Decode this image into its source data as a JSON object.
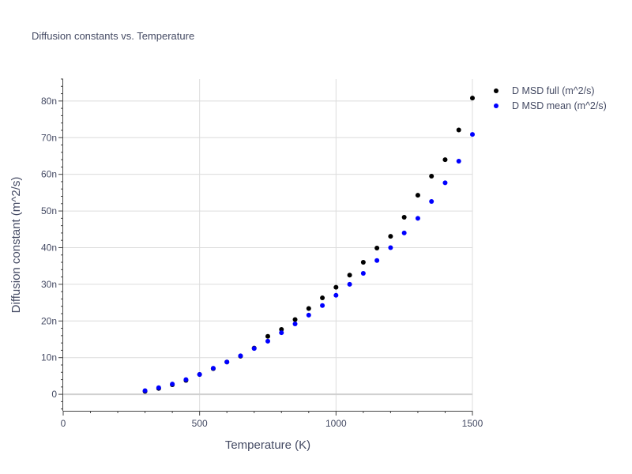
{
  "chart_data": {
    "type": "scatter",
    "title": "Diffusion constants vs. Temperature",
    "xlabel": "Temperature (K)",
    "ylabel": "Diffusion constant (m^2/s)",
    "xlim": [
      0,
      1500
    ],
    "ylim": [
      -4.5,
      86
    ],
    "x_ticks": [
      0,
      500,
      1000,
      1500
    ],
    "x_tick_labels": [
      "0",
      "500",
      "1000",
      "1500"
    ],
    "y_ticks": [
      0,
      10,
      20,
      30,
      40,
      50,
      60,
      70,
      80
    ],
    "y_tick_labels": [
      "0",
      "10n",
      "20n",
      "30n",
      "40n",
      "50n",
      "60n",
      "70n",
      "80n"
    ],
    "legend_position": "top-right",
    "x": [
      300,
      350,
      400,
      450,
      500,
      550,
      600,
      650,
      700,
      750,
      800,
      850,
      900,
      950,
      1000,
      1050,
      1100,
      1150,
      1200,
      1250,
      1300,
      1350,
      1400,
      1450,
      1500
    ],
    "series": [
      {
        "name": "D MSD full (m^2/s)",
        "color": "#000000",
        "values": [
          0.8,
          1.6,
          2.6,
          3.8,
          5.4,
          7.0,
          8.8,
          10.4,
          12.6,
          15.8,
          17.7,
          20.4,
          23.4,
          26.3,
          29.2,
          32.5,
          36.0,
          39.9,
          43.1,
          48.3,
          54.3,
          59.5,
          64.0,
          72.1,
          80.8
        ]
      },
      {
        "name": "D MSD mean (m^2/s)",
        "color": "#0000ff",
        "values": [
          1.0,
          1.8,
          2.8,
          4.0,
          5.4,
          7.1,
          8.8,
          10.5,
          12.5,
          14.5,
          16.8,
          19.2,
          21.6,
          24.2,
          27.0,
          30.0,
          33.0,
          36.5,
          40.0,
          44.0,
          48.0,
          52.6,
          57.7,
          63.6,
          70.9
        ]
      }
    ]
  }
}
